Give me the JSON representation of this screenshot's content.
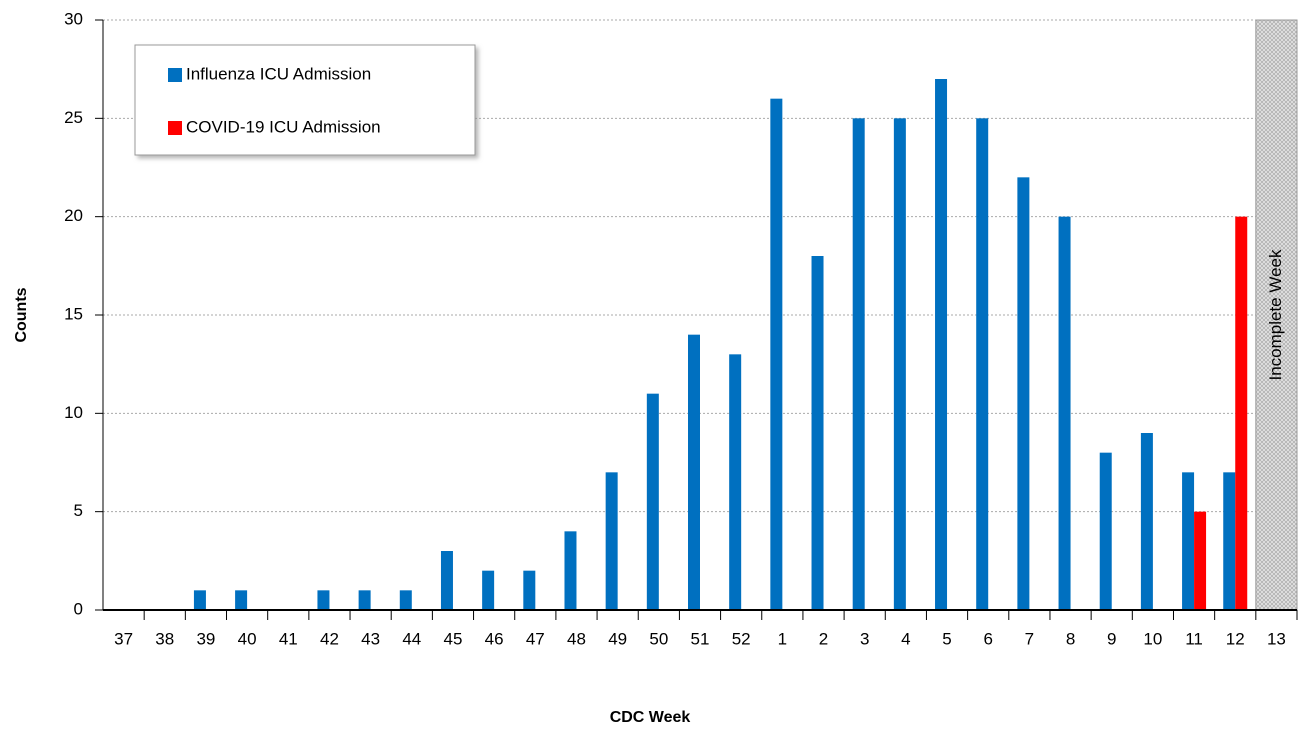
{
  "chart_data": {
    "type": "bar",
    "x_label": "CDC Week",
    "y_label": "Counts",
    "annotation": "Incomplete Week",
    "categories": [
      "37",
      "38",
      "39",
      "40",
      "41",
      "42",
      "43",
      "44",
      "45",
      "46",
      "47",
      "48",
      "49",
      "50",
      "51",
      "52",
      "1",
      "2",
      "3",
      "4",
      "5",
      "6",
      "7",
      "8",
      "9",
      "10",
      "11",
      "12",
      "13"
    ],
    "series": [
      {
        "name": "Influenza ICU Admission",
        "color": "#0070c0",
        "values": [
          0,
          0,
          1,
          1,
          0,
          1,
          1,
          1,
          3,
          2,
          2,
          4,
          7,
          11,
          14,
          13,
          26,
          18,
          25,
          25,
          27,
          25,
          22,
          20,
          8,
          9,
          7,
          7,
          null
        ]
      },
      {
        "name": "COVID-19 ICU Admission",
        "color": "#ff0000",
        "values": [
          0,
          0,
          0,
          0,
          0,
          0,
          0,
          0,
          0,
          0,
          0,
          0,
          0,
          0,
          0,
          0,
          0,
          0,
          0,
          0,
          0,
          0,
          0,
          0,
          0,
          0,
          5,
          20,
          null
        ]
      }
    ],
    "ylim": [
      0,
      30
    ],
    "yticks": [
      0,
      5,
      10,
      15,
      20,
      25,
      30
    ],
    "grid": true,
    "legend": "top-left"
  }
}
